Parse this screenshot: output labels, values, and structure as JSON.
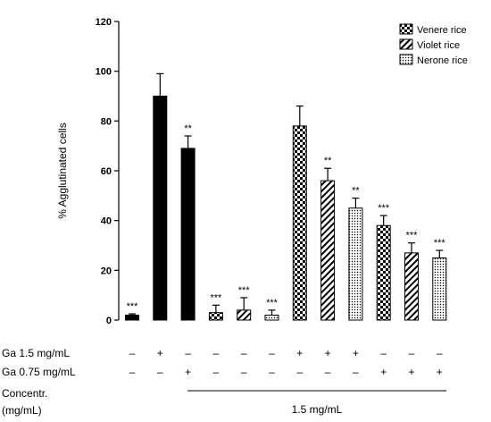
{
  "chart_data": {
    "type": "bar",
    "ylabel": "% Agglutinated cells",
    "ylim": [
      0,
      120
    ],
    "yticks": [
      "0",
      "20",
      "40",
      "60",
      "80",
      "100",
      "120"
    ],
    "grid": false,
    "legend_position": "top-right",
    "legend": [
      {
        "label": "Venere rice",
        "pattern": "checker"
      },
      {
        "label": "Violet rice",
        "pattern": "hatch"
      },
      {
        "label": "Nerone rice",
        "pattern": "dots"
      }
    ],
    "bars": [
      {
        "value": 2,
        "error": 0.5,
        "pattern": "solid",
        "significance": "***",
        "ga15": "–",
        "ga075": "–"
      },
      {
        "value": 90,
        "error": 9,
        "pattern": "solid",
        "significance": "",
        "ga15": "+",
        "ga075": "–"
      },
      {
        "value": 69,
        "error": 5,
        "pattern": "solid",
        "significance": "**",
        "ga15": "–",
        "ga075": "+"
      },
      {
        "value": 3,
        "error": 3,
        "pattern": "checker",
        "significance": "***",
        "ga15": "–",
        "ga075": "–"
      },
      {
        "value": 4,
        "error": 5,
        "pattern": "hatch",
        "significance": "***",
        "ga15": "–",
        "ga075": "–"
      },
      {
        "value": 2,
        "error": 2,
        "pattern": "dots",
        "significance": "***",
        "ga15": "–",
        "ga075": "–"
      },
      {
        "value": 78,
        "error": 8,
        "pattern": "checker",
        "significance": "",
        "ga15": "+",
        "ga075": "–"
      },
      {
        "value": 56,
        "error": 5,
        "pattern": "hatch",
        "significance": "**",
        "ga15": "+",
        "ga075": "–"
      },
      {
        "value": 45,
        "error": 4,
        "pattern": "dots",
        "significance": "**",
        "ga15": "+",
        "ga075": "–"
      },
      {
        "value": 38,
        "error": 4,
        "pattern": "checker",
        "significance": "***",
        "ga15": "–",
        "ga075": "+"
      },
      {
        "value": 27,
        "error": 4,
        "pattern": "hatch",
        "significance": "***",
        "ga15": "–",
        "ga075": "+"
      },
      {
        "value": 25,
        "error": 3,
        "pattern": "dots",
        "significance": "***",
        "ga15": "–",
        "ga075": "+"
      }
    ],
    "row_labels": {
      "ga15": "Ga 1.5 mg/mL",
      "ga075": "Ga 0.75 mg/mL",
      "concentr_line1": "Concentr.",
      "concentr_line2": "(mg/mL)",
      "concentr_value": "1.5 mg/mL"
    }
  }
}
